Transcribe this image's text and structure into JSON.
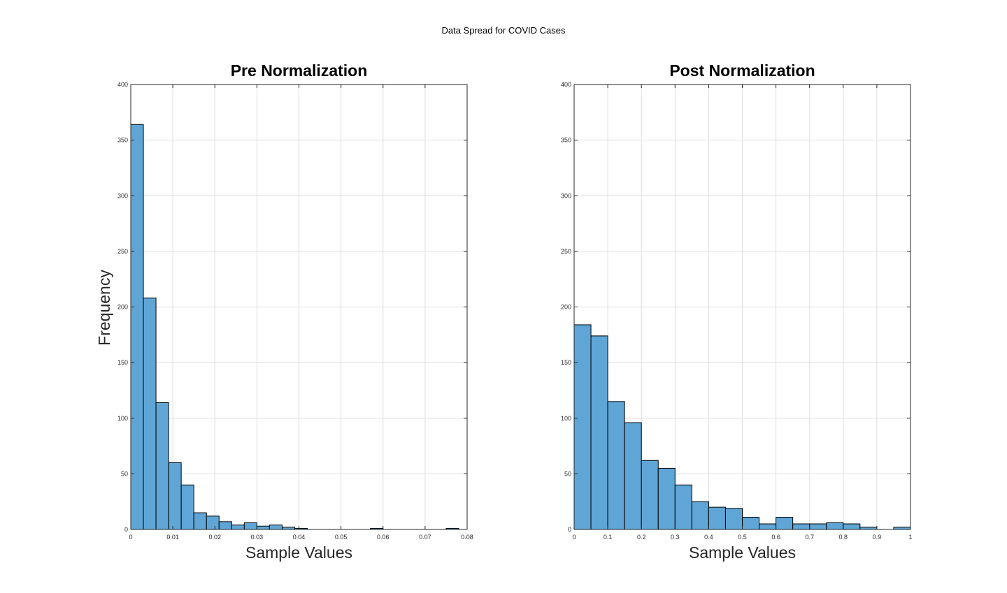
{
  "figure": {
    "suptitle": "Data Spread for COVID Cases",
    "bar_color": "#5fa6d6",
    "bar_edge_color": "#000000"
  },
  "chart_data": [
    {
      "type": "bar",
      "subtype": "histogram",
      "title": "Pre Normalization",
      "xlabel": "Sample Values",
      "ylabel": "Frequency",
      "xlim": [
        0,
        0.08
      ],
      "ylim": [
        0,
        400
      ],
      "xticks": [
        0,
        0.01,
        0.02,
        0.03,
        0.04,
        0.05,
        0.06,
        0.07,
        0.08
      ],
      "xtick_labels": [
        "0",
        "0.01",
        "0.02",
        "0.03",
        "0.04",
        "0.05",
        "0.06",
        "0.07",
        "0.08"
      ],
      "yticks": [
        0,
        50,
        100,
        150,
        200,
        250,
        300,
        350,
        400
      ],
      "ytick_labels": [
        "0",
        "50",
        "100",
        "150",
        "200",
        "250",
        "300",
        "350",
        "400"
      ],
      "grid": true,
      "bin_width": 0.003,
      "bin_start": 0,
      "values": [
        364,
        208,
        114,
        60,
        40,
        15,
        12,
        7,
        4,
        6,
        3,
        4,
        2,
        1,
        0,
        0,
        0,
        0,
        0,
        1,
        0,
        0,
        0,
        0,
        0,
        1
      ]
    },
    {
      "type": "bar",
      "subtype": "histogram",
      "title": "Post Normalization",
      "xlabel": "Sample Values",
      "ylabel": "",
      "xlim": [
        0,
        1
      ],
      "ylim": [
        0,
        400
      ],
      "xticks": [
        0,
        0.1,
        0.2,
        0.3,
        0.4,
        0.5,
        0.6,
        0.7,
        0.8,
        0.9,
        1
      ],
      "xtick_labels": [
        "0",
        "0.1",
        "0.2",
        "0.3",
        "0.4",
        "0.5",
        "0.6",
        "0.7",
        "0.8",
        "0.9",
        "1"
      ],
      "yticks": [
        0,
        50,
        100,
        150,
        200,
        250,
        300,
        350,
        400
      ],
      "ytick_labels": [
        "0",
        "50",
        "100",
        "150",
        "200",
        "250",
        "300",
        "350",
        "400"
      ],
      "grid": true,
      "bin_width": 0.05,
      "bin_start": 0,
      "values": [
        184,
        174,
        115,
        96,
        62,
        55,
        40,
        25,
        20,
        19,
        11,
        5,
        11,
        5,
        5,
        6,
        5,
        2,
        0,
        2
      ]
    }
  ]
}
